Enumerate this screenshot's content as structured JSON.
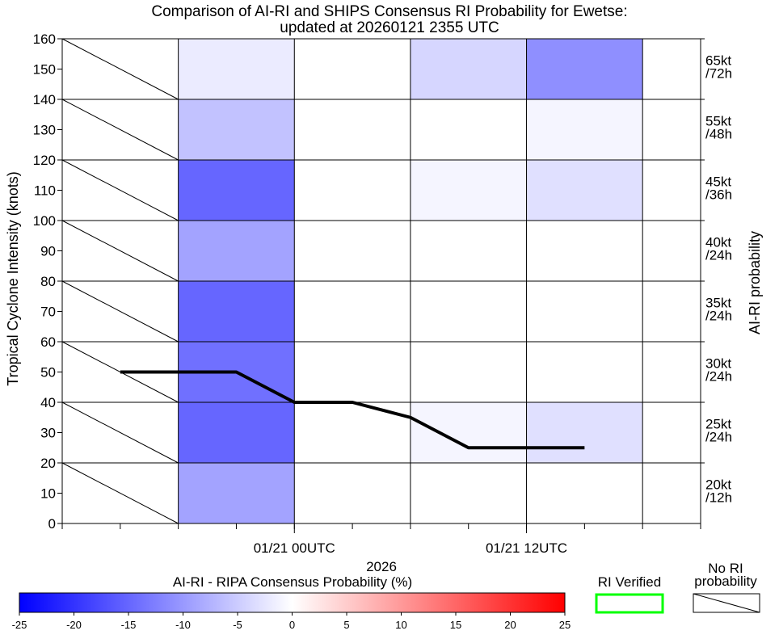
{
  "chart_data": {
    "type": "heatmap",
    "title": "Comparison of AI-RI and SHIPS Consensus RI Probability for Ewetse:",
    "subtitle": "updated at 20260121 2355 UTC",
    "ylabel": "Tropical Cyclone Intensity (knots)",
    "right_label": "AI-RI probability",
    "xlabel": "2026",
    "ylim": [
      0,
      160
    ],
    "y_ticks": [
      "0",
      "10",
      "20",
      "30",
      "40",
      "50",
      "60",
      "70",
      "80",
      "90",
      "100",
      "110",
      "120",
      "130",
      "140",
      "150",
      "160"
    ],
    "x_ticks": [
      {
        "label": "01/21 00UTC",
        "hour": 0
      },
      {
        "label": "01/21 12UTC",
        "hour": 12
      }
    ],
    "columns": [
      {
        "start_hour": -12,
        "end_hour": -6
      },
      {
        "start_hour": -6,
        "end_hour": 0
      },
      {
        "start_hour": 0,
        "end_hour": 6
      },
      {
        "start_hour": 6,
        "end_hour": 12
      },
      {
        "start_hour": 12,
        "end_hour": 18
      }
    ],
    "rows": [
      {
        "ymin": 0,
        "ymax": 20,
        "label_kt": "20kt",
        "label_h": "/12h"
      },
      {
        "ymin": 20,
        "ymax": 40,
        "label_kt": "25kt",
        "label_h": "/24h"
      },
      {
        "ymin": 40,
        "ymax": 60,
        "label_kt": "30kt",
        "label_h": "/24h"
      },
      {
        "ymin": 60,
        "ymax": 80,
        "label_kt": "35kt",
        "label_h": "/24h"
      },
      {
        "ymin": 80,
        "ymax": 100,
        "label_kt": "40kt",
        "label_h": "/24h"
      },
      {
        "ymin": 100,
        "ymax": 120,
        "label_kt": "45kt",
        "label_h": "/36h"
      },
      {
        "ymin": 120,
        "ymax": 140,
        "label_kt": "55kt",
        "label_h": "/48h"
      },
      {
        "ymin": 140,
        "ymax": 160,
        "label_kt": "65kt",
        "label_h": "/72h"
      }
    ],
    "cells": [
      [
        null,
        -9,
        0,
        0,
        0
      ],
      [
        null,
        -15,
        0,
        -1,
        -3
      ],
      [
        null,
        -14,
        0,
        0,
        0
      ],
      [
        null,
        -15,
        0,
        0,
        0
      ],
      [
        null,
        -9,
        0,
        0,
        0
      ],
      [
        null,
        -15,
        0,
        -1,
        -3
      ],
      [
        null,
        -6,
        0,
        0,
        -1
      ],
      [
        null,
        -2,
        0,
        -4,
        -11
      ]
    ],
    "series": [
      {
        "name": "intensity",
        "x_hours": [
          -9,
          -6,
          -3,
          0,
          3,
          6,
          9,
          12,
          15
        ],
        "values": [
          50,
          50,
          50,
          40,
          40,
          35,
          25,
          25,
          25
        ]
      }
    ],
    "colorbar": {
      "title": "AI-RI - RIPA Consensus Probability (%)",
      "min": -25,
      "max": 25,
      "ticks": [
        "-25",
        "-20",
        "-15",
        "-10",
        "-5",
        "0",
        "5",
        "10",
        "15",
        "20",
        "25"
      ],
      "low_color": "#0000ff",
      "mid_color": "#ffffff",
      "high_color": "#ff0000"
    },
    "legend": {
      "verified_label": "RI Verified",
      "verified_color": "#00ff00",
      "no_prob_label_1": "No RI",
      "no_prob_label_2": "probability"
    }
  }
}
